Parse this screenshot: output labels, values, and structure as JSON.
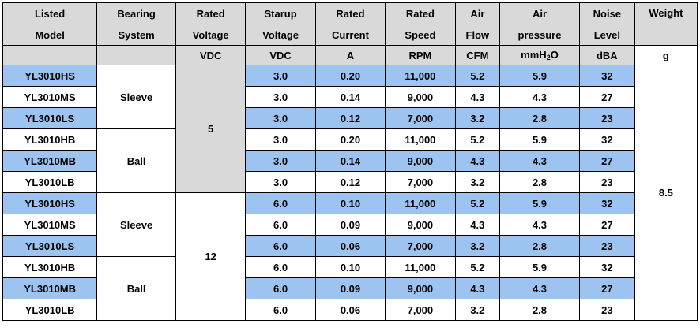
{
  "header": {
    "columns": [
      {
        "line1": "Listed",
        "line2": "Model",
        "unit": ""
      },
      {
        "line1": "Bearing",
        "line2": "System",
        "unit": ""
      },
      {
        "line1": "Rated",
        "line2": "Voltage",
        "unit": "VDC"
      },
      {
        "line1": "Starup",
        "line2": "Voltage",
        "unit": "VDC"
      },
      {
        "line1": "Rated",
        "line2": "Current",
        "unit": "A"
      },
      {
        "line1": "Rated",
        "line2": "Speed",
        "unit": "RPM"
      },
      {
        "line1": "Air",
        "line2": "Flow",
        "unit": "CFM"
      },
      {
        "line1": "Air",
        "line2": "pressure",
        "unit_main": "mmH",
        "unit_sub": "2",
        "unit_tail": "O"
      },
      {
        "line1": "Noise",
        "line2": "Level",
        "unit": "dBA"
      },
      {
        "line1": "Weight",
        "line2": "",
        "unit": "g"
      }
    ]
  },
  "groups": {
    "bearing": [
      "Sleeve",
      "Ball",
      "Sleeve",
      "Ball"
    ],
    "rated_voltage": [
      "5",
      "12"
    ],
    "weight": "8.5"
  },
  "rows": [
    {
      "model": "YL3010HS",
      "startup": "3.0",
      "current": "0.20",
      "speed": "11,000",
      "flow": "5.2",
      "pressure": "5.9",
      "noise": "32"
    },
    {
      "model": "YL3010MS",
      "startup": "3.0",
      "current": "0.14",
      "speed": "9,000",
      "flow": "4.3",
      "pressure": "4.3",
      "noise": "27"
    },
    {
      "model": "YL3010LS",
      "startup": "3.0",
      "current": "0.12",
      "speed": "7,000",
      "flow": "3.2",
      "pressure": "2.8",
      "noise": "23"
    },
    {
      "model": "YL3010HB",
      "startup": "3.0",
      "current": "0.20",
      "speed": "11,000",
      "flow": "5.2",
      "pressure": "5.9",
      "noise": "32"
    },
    {
      "model": "YL3010MB",
      "startup": "3.0",
      "current": "0.14",
      "speed": "9,000",
      "flow": "4.3",
      "pressure": "4.3",
      "noise": "27"
    },
    {
      "model": "YL3010LB",
      "startup": "3.0",
      "current": "0.12",
      "speed": "7,000",
      "flow": "3.2",
      "pressure": "2.8",
      "noise": "23"
    },
    {
      "model": "YL3010HS",
      "startup": "6.0",
      "current": "0.10",
      "speed": "11,000",
      "flow": "5.2",
      "pressure": "5.9",
      "noise": "32"
    },
    {
      "model": "YL3010MS",
      "startup": "6.0",
      "current": "0.09",
      "speed": "9,000",
      "flow": "4.3",
      "pressure": "4.3",
      "noise": "27"
    },
    {
      "model": "YL3010LS",
      "startup": "6.0",
      "current": "0.06",
      "speed": "7,000",
      "flow": "3.2",
      "pressure": "2.8",
      "noise": "23"
    },
    {
      "model": "YL3010HB",
      "startup": "6.0",
      "current": "0.10",
      "speed": "11,000",
      "flow": "5.2",
      "pressure": "5.9",
      "noise": "32"
    },
    {
      "model": "YL3010MB",
      "startup": "6.0",
      "current": "0.09",
      "speed": "9,000",
      "flow": "4.3",
      "pressure": "4.3",
      "noise": "27"
    },
    {
      "model": "YL3010LB",
      "startup": "6.0",
      "current": "0.06",
      "speed": "7,000",
      "flow": "3.2",
      "pressure": "2.8",
      "noise": "23"
    }
  ],
  "colors": {
    "highlight_row": "#9dc3f0",
    "header_bg": "#d9d9d9",
    "border": "#000000"
  }
}
